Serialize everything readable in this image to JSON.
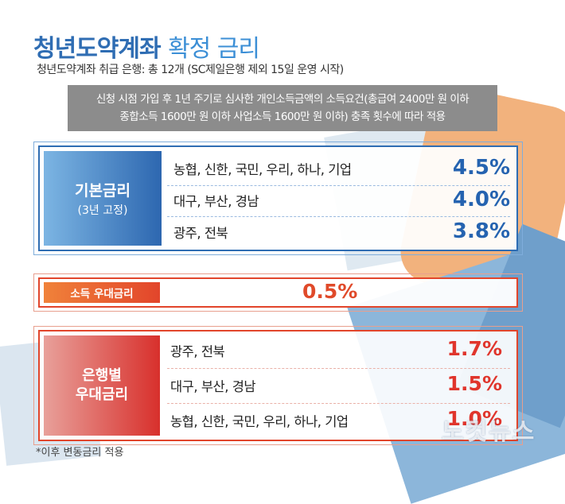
{
  "title": {
    "main": "청년도약계좌",
    "sub": "확정 금리"
  },
  "subtitle": "청년도약계좌 취급 은행: 총 12개 (SC제일은행 제외 15일 운영 시작)",
  "notice": {
    "line1": "신청 시점 가입 후 1년 주기로 심사한 개인소득금액의 소득요건(총급여 2400만 원 이하",
    "line2": "종합소득 1600만 원 이하 사업소득 1600만 원 이하) 충족 횟수에 따라 적용"
  },
  "base_rate": {
    "label": "기본금리",
    "label_note": "(3년 고정)",
    "rows": [
      {
        "banks": "농협, 신한, 국민, 우리, 하나, 기업",
        "rate": "4.5%"
      },
      {
        "banks": "대구, 부산, 경남",
        "rate": "4.0%"
      },
      {
        "banks": "광주, 전북",
        "rate": "3.8%"
      }
    ]
  },
  "income_rate": {
    "label": "소득 우대금리",
    "rate": "0.5%"
  },
  "bank_rate": {
    "label_line1": "은행별",
    "label_line2": "우대금리",
    "rows": [
      {
        "banks": "광주, 전북",
        "rate": "1.7%"
      },
      {
        "banks": "대구, 부산, 경남",
        "rate": "1.5%"
      },
      {
        "banks": "농협, 신한, 국민, 우리, 하나, 기업",
        "rate": "1.0%"
      }
    ]
  },
  "footnote": "*이후 변동금리 적용",
  "watermark": "노컷뉴스",
  "colors": {
    "blue": "#2f6db3",
    "red": "#e2452b",
    "orange": "#f0823a"
  }
}
